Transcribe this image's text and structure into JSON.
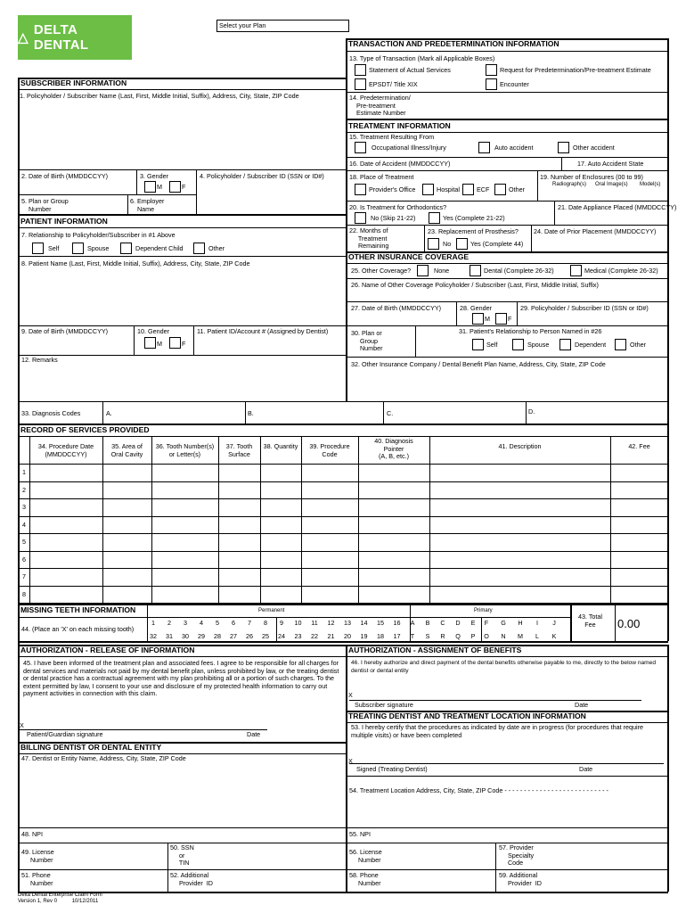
{
  "logo_text": "DELTA DENTAL",
  "select_plan": "Select your Plan",
  "colors": {
    "brand_green": "#6cbe45"
  },
  "transaction": {
    "header": "TRANSACTION AND PREDETERMINATION INFORMATION",
    "f13": "13. Type of Transaction (Mark all Applicable Boxes)",
    "opt_actual": "Statement of Actual Services",
    "opt_predet": "Request for Predetermination/Pre-treatment Estimate",
    "opt_epsdt": "EPSDT/ Title XIX",
    "opt_encounter": "Encounter",
    "f14": "14. Predetermination/\n    Pre-treatment\n    Estimate Number"
  },
  "treatment": {
    "header": "TREATMENT INFORMATION",
    "f15": "15. Treatment Resulting From",
    "occ": "Occupational Illness/Injury",
    "auto": "Auto accident",
    "other": "Other accident",
    "f16": "16. Date of Accident (MMDDCCYY)",
    "f17": "17. Auto Accident State",
    "f18": "18. Place of Treatment",
    "office": "Provider's Office",
    "hospital": "Hospital",
    "ecf": "ECF",
    "other_place": "Other",
    "f19": "19. Number of Enclosures (00 to 99)",
    "radio": "Radiograph(s)",
    "oral": "Oral Image(s)",
    "model": "Model(s)",
    "f20": "20. Is Treatment for Orthodontics?",
    "no_skip": "No  (Skip 21-22)",
    "yes_ortho": "Yes  (Complete 21-22)",
    "f21": "21. Date Appliance Placed (MMDDCCYY)",
    "f22": "22. Months of\n     Treatment\n     Remaining",
    "f23": "23. Replacement of Prosthesis?",
    "no": "No",
    "yes44": "Yes  (Complete 44)",
    "f24": "24. Date of Prior Placement (MMDDCCYY)"
  },
  "other_ins": {
    "header": "OTHER INSURANCE COVERAGE",
    "f25": "25. Other Coverage?",
    "none": "None",
    "dental": "Dental (Complete 26-32)",
    "medical": "Medical (Complete 26-32)",
    "f26": "26. Name  of  Other  Coverage  Policyholder  /  Subscriber  (Last, First, Middle Initial, Suffix)",
    "f27": "27. Date of Birth (MMDDCCYY)",
    "f28": "28. Gender",
    "m": "M",
    "f": "F",
    "f29": "29. Policyholder / Subscriber  ID  (SSN or ID#)",
    "f30": "30. Plan or\n     Group\n     Number",
    "f31": "31. Patient's Relationship to Person Named in #26",
    "self": "Self",
    "spouse": "Spouse",
    "dependent": "Dependent",
    "other": "Other",
    "f32": "32.  Other  Insurance  Company  /  Dental  Benefit  Plan  Name,  Address,  City,  State,  ZIP  Code"
  },
  "subscriber": {
    "header": "SUBSCRIBER INFORMATION",
    "f1": "1. Policyholder / Subscriber  Name  (Last,  First,  Middle  Initial,  Suffix),  Address,  City,  State,  ZIP Code",
    "f2": "2.  Date  of  Birth    (MMDDCCYY)",
    "f3": "3. Gender",
    "m": "M",
    "f": "F",
    "f4": "4. Policyholder / Subscriber ID (SSN or ID#)",
    "f5": "5. Plan or Group\n    Number",
    "f6": "6. Employer\n    Name"
  },
  "patient": {
    "header": "PATIENT INFORMATION",
    "f7": "7. Relationship to Policyholder/Subscriber in #1 Above",
    "self": "Self",
    "spouse": "Spouse",
    "dependent": "Dependent Child",
    "other": "Other",
    "f8": "8. Patient  Name  (Last,  First,  Middle  Initial,  Suffix),  Address,  City,  State,  ZIP  Code",
    "f9": "9. Date of Birth (MMDDCCYY)",
    "f10": "10. Gender",
    "m": "M",
    "f": "F",
    "f11": "11. Patient ID/Account # (Assigned by Dentist)",
    "f12": "12. Remarks"
  },
  "diagnosis": {
    "f33": "33. Diagnosis Codes",
    "a": "A.",
    "b": "B.",
    "c": "C.",
    "d": "D."
  },
  "services": {
    "header": "RECORD OF SERVICES PROVIDED",
    "columns": [
      "34. Procedure Date\n(MMDDCCYY)",
      "35. Area of\nOral Cavity",
      "36. Tooth Number(s)\nor Letter(s)",
      "37. Tooth\nSurface",
      "38. Quantity",
      "39. Procedure\nCode",
      "40. Diagnosis\nPointer\n(A, B, etc.)",
      "41. Description",
      "42. Fee"
    ],
    "rows": [
      "1",
      "2",
      "3",
      "4",
      "5",
      "6",
      "7",
      "8"
    ]
  },
  "missing": {
    "header": "MISSING TEETH INFORMATION",
    "f44": "44. (Place an 'X' on each missing tooth)",
    "permanent": "Permanent",
    "primary": "Primary",
    "perm_top": [
      "1",
      "2",
      "3",
      "4",
      "5",
      "6",
      "7",
      "8",
      "9",
      "10",
      "11",
      "12",
      "13",
      "14",
      "15",
      "16"
    ],
    "perm_bottom": [
      "32",
      "31",
      "30",
      "29",
      "28",
      "27",
      "26",
      "25",
      "24",
      "23",
      "22",
      "21",
      "20",
      "19",
      "18",
      "17"
    ],
    "prim_top": [
      "A",
      "B",
      "C",
      "D",
      "E",
      "F",
      "G",
      "H",
      "I",
      "J"
    ],
    "prim_bottom": [
      "T",
      "S",
      "R",
      "Q",
      "P",
      "O",
      "N",
      "M",
      "L",
      "K"
    ],
    "f43": "43. Total\nFee",
    "total_fee": "0.00"
  },
  "auth_release": {
    "header": "AUTHORIZATION - RELEASE OF INFORMATION",
    "f45": "45. I have been informed of the treatment plan and associated fees. I agree to be responsible for all charges for dental services and materials not paid by my dental benefit plan, unless prohibited by law, or the treating dentist or dental practice has a contractual agreement with my plan prohibiting all or a portion of such charges. To the extent permitted by law, I consent to your use and disclosure of my protected health information to carry out payment activities in connection with this claim.",
    "x": "X",
    "sig": "Patient/Guardian signature",
    "date": "Date"
  },
  "auth_assign": {
    "header": "AUTHORIZATION - ASSIGNMENT OF BENEFITS",
    "f46": "46. I hereby authorize and direct payment of the dental benefits otherwise payable to me, directly to the below named dentist or dental entity",
    "x": "X",
    "sig": "Subscriber signature",
    "date": "Date"
  },
  "treating": {
    "header": "TREATING DENTIST AND TREATMENT LOCATION INFORMATION",
    "f53": "53. I hereby certify that the procedures as indicated by date are in progress (for procedures that require multiple visits) or have been completed",
    "x": "X",
    "sig": "Signed (Treating Dentist)",
    "date": "Date",
    "f54": "54.  Treatment  Location  Address,  City,  State,  ZIP  Code - - - - - - - - - - - - - - - - - - - - - - - - - - -",
    "f55": "55. NPI",
    "f56": "56. License\n     Number",
    "f57": "57. Provider\n     Specialty\n     Code",
    "f58": "58. Phone\n     Number",
    "f59": "59. Additional\n     Provider  ID"
  },
  "billing": {
    "header": "BILLING DENTIST OR DENTAL ENTITY",
    "f47": "47.  Dentist  or  Entity  Name,  Address,  City,  State,  ZIP  Code",
    "f48": "48. NPI",
    "f49": "49. License\n     Number",
    "f50": "50. SSN\n     or\n     TIN",
    "f51": "51. Phone\n     Number",
    "f52": "52. Additional\n     Provider  ID"
  },
  "footer": {
    "line1": "Delta Dental Enterprise Claim  Form",
    "line2": "Version 1, Rev 0          10/12/2011"
  }
}
